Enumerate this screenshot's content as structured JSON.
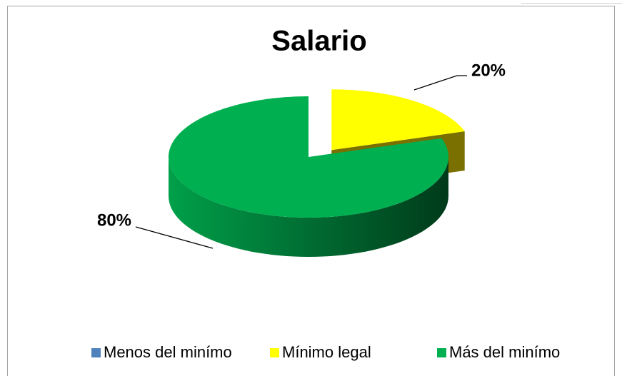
{
  "chart_data": {
    "type": "pie",
    "title": "Salario",
    "categories": [
      "Menos del minímo",
      "Mínimo legal",
      "Más del minímo"
    ],
    "values": [
      0,
      20,
      80
    ],
    "value_labels": [
      null,
      "20%",
      "80%"
    ],
    "colors": [
      "#4f81bd",
      "#ffff00",
      "#00b050"
    ],
    "legend": "bottom"
  }
}
